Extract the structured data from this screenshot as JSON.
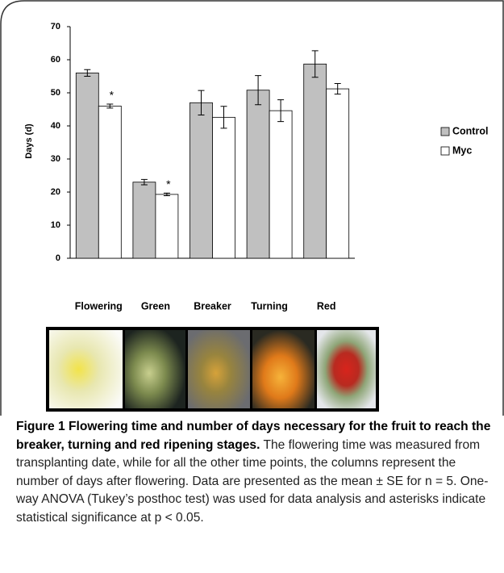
{
  "chart_data": {
    "type": "bar",
    "ylabel": "Days (d)",
    "categories": [
      "Flowering",
      "Green",
      "Breaker",
      "Turning",
      "Red"
    ],
    "series": [
      {
        "name": "Control",
        "color": "#c0c0c0",
        "values": [
          56,
          23,
          47,
          50.8,
          58.7
        ],
        "errors": [
          1,
          0.8,
          3.7,
          4.4,
          4
        ]
      },
      {
        "name": "Myc",
        "color": "#ffffff",
        "values": [
          46,
          19.3,
          42.6,
          44.6,
          51.2
        ],
        "errors": [
          0.6,
          0.4,
          3.3,
          3.3,
          1.6
        ],
        "markers": [
          "*",
          "*",
          null,
          null,
          null
        ]
      }
    ],
    "ylim": [
      0,
      70
    ],
    "yticks": [
      0,
      10,
      20,
      30,
      40,
      50,
      60,
      70
    ],
    "grid": false,
    "legend": "right"
  },
  "caption": {
    "label": "Figure 1",
    "title": "Flowering time and number of days necessary for the fruit to reach the breaker, turning and red ripening stages.",
    "text": "The flowering time was measured from transplanting date, while for all the other time points, the columns represent the number of days after flowering. Data are presented as the mean ± SE for n = 5. One-way ANOVA (Tukey’s posthoc test) was used for data analysis and asterisks indicate statistical significance at p < 0.05."
  }
}
